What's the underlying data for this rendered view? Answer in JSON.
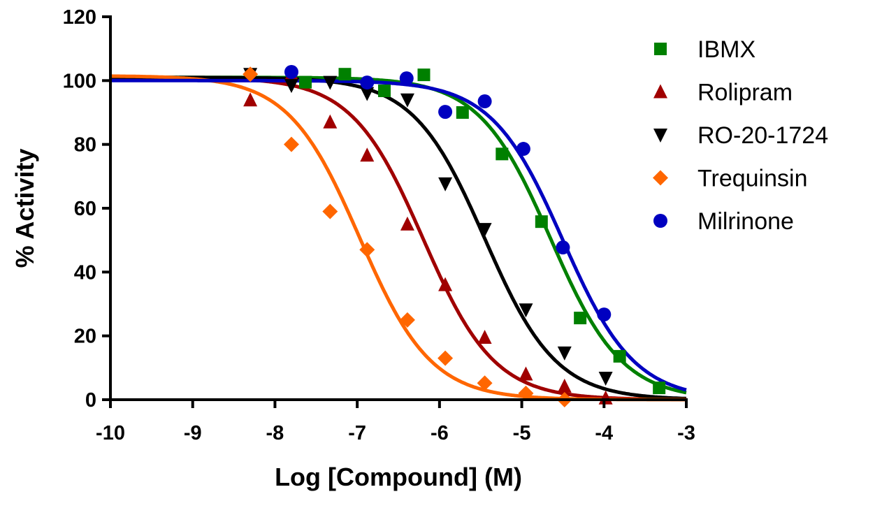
{
  "chart_data": {
    "type": "scatter",
    "title": "",
    "xlabel": "Log [Compound] (M)",
    "ylabel": "% Activity",
    "xlim": [
      -10,
      -3
    ],
    "ylim": [
      0,
      120
    ],
    "xticks": [
      -10,
      -9,
      -8,
      -7,
      -6,
      -5,
      -4,
      -3
    ],
    "xtick_labels": [
      "-10",
      "-9",
      "-8",
      "-7",
      "-6",
      "-5",
      "-4",
      "-3"
    ],
    "yticks": [
      0,
      20,
      40,
      60,
      80,
      100,
      120
    ],
    "ytick_labels": [
      "0",
      "20",
      "40",
      "60",
      "80",
      "100",
      "120"
    ],
    "grid": false,
    "legend_position": "right",
    "series": [
      {
        "name": "IBMX",
        "color": "#008000",
        "marker": "square",
        "fit": {
          "top": 101,
          "bottom": 0,
          "logIC50": -4.65,
          "hill": 1.0
        },
        "x": [
          -7.63,
          -7.15,
          -6.67,
          -6.19,
          -5.72,
          -5.24,
          -4.76,
          -4.29,
          -3.81,
          -3.33
        ],
        "y": [
          99.5,
          102,
          96.8,
          101.8,
          90,
          77,
          55.8,
          25.6,
          13.6,
          3.7
        ]
      },
      {
        "name": "Rolipram",
        "color": "#a00000",
        "marker": "triangle-up",
        "fit": {
          "top": 101,
          "bottom": 0,
          "logIC50": -6.2,
          "hill": 1.0
        },
        "x": [
          -8.3,
          -7.8,
          -7.33,
          -6.88,
          -6.39,
          -5.93,
          -5.45,
          -4.95,
          -4.48,
          -3.98
        ],
        "y": [
          93.9,
          102,
          87,
          76.6,
          55,
          36,
          19.5,
          8,
          4.2,
          0.5
        ]
      },
      {
        "name": "RO-20-1724",
        "color": "#000000",
        "marker": "triangle-down",
        "fit": {
          "top": 101,
          "bottom": 0,
          "logIC50": -5.45,
          "hill": 1.0
        },
        "x": [
          -8.3,
          -7.8,
          -7.33,
          -6.88,
          -6.39,
          -5.93,
          -5.45,
          -4.95,
          -4.48,
          -3.98
        ],
        "y": [
          102,
          98.5,
          99.5,
          96,
          94,
          67.7,
          53.4,
          28.2,
          14.7,
          6.8
        ]
      },
      {
        "name": "Trequinsin",
        "color": "#ff6600",
        "marker": "diamond",
        "fit": {
          "top": 101.5,
          "bottom": 0,
          "logIC50": -6.97,
          "hill": 1.0
        },
        "x": [
          -8.3,
          -7.8,
          -7.33,
          -6.88,
          -6.39,
          -5.93,
          -5.45,
          -4.95,
          -4.48
        ],
        "y": [
          102,
          80,
          59,
          47,
          25,
          13,
          5.2,
          2,
          0
        ]
      },
      {
        "name": "Milrinone",
        "color": "#0000c0",
        "marker": "circle",
        "fit": {
          "top": 100,
          "bottom": 0,
          "logIC50": -4.5,
          "hill": 1.0
        },
        "x": [
          -7.8,
          -6.88,
          -6.4,
          -5.93,
          -5.45,
          -4.98,
          -4.5,
          -4.0
        ],
        "y": [
          102.7,
          99.4,
          100.7,
          90.2,
          93.5,
          78.6,
          47.7,
          26.7
        ]
      }
    ]
  }
}
